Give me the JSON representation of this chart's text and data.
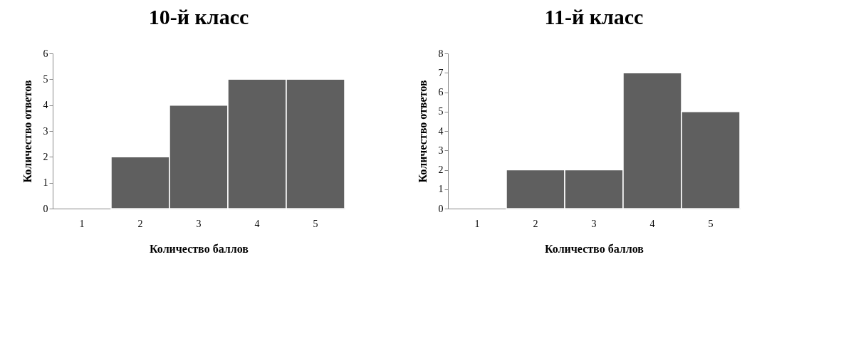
{
  "chart_data": [
    {
      "type": "bar",
      "title": "10-й класс",
      "xlabel": "Количество баллов",
      "ylabel": "Количество ответов",
      "categories": [
        "1",
        "2",
        "3",
        "4",
        "5"
      ],
      "values": [
        0,
        2,
        4,
        5,
        5
      ],
      "color": "#5f5f5f",
      "ylim": [
        0,
        6
      ],
      "yticks": [
        0,
        1,
        2,
        3,
        4,
        5,
        6
      ]
    },
    {
      "type": "bar",
      "title": "11-й класс",
      "xlabel": "Количество баллов",
      "ylabel": "Количество ответов",
      "categories": [
        "1",
        "2",
        "3",
        "4",
        "5"
      ],
      "values": [
        0,
        2,
        2,
        7,
        5
      ],
      "color": "#5f5f5f",
      "ylim": [
        0,
        8
      ],
      "yticks": [
        0,
        1,
        2,
        3,
        4,
        5,
        6,
        7,
        8
      ]
    }
  ]
}
